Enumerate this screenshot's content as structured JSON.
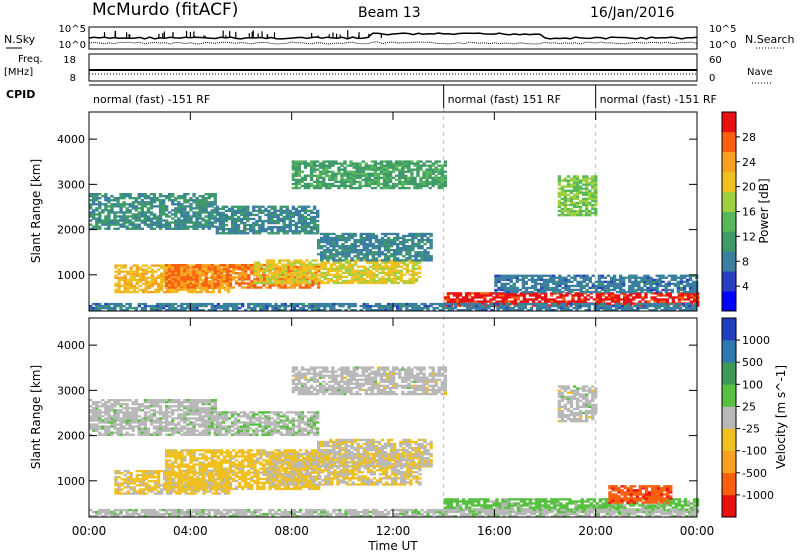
{
  "header": {
    "station": "McMurdo (fitACF)",
    "beam": "Beam 13",
    "date": "16/Jan/2016"
  },
  "control_panels": {
    "nsky_label": "N.Sky",
    "nsearch_label": "N.Search",
    "freq_label_line1": "Freq.",
    "freq_label_line2": "[MHz]",
    "nave_label": "Nave",
    "cpid_label": "CPID",
    "noise_ticks_left": [
      "10^5",
      "10^0"
    ],
    "noise_ticks_right": [
      "10^5",
      "10^0"
    ],
    "freq_ticks": [
      "18",
      "8"
    ],
    "nave_ticks": [
      "60",
      "0"
    ],
    "cpid_segments": [
      {
        "label": "normal (fast) -151 RF",
        "start_hr": 0,
        "end_hr": 14
      },
      {
        "label": "normal (fast) 151 RF",
        "start_hr": 14,
        "end_hr": 20
      },
      {
        "label": "normal (fast) -151 RF",
        "start_hr": 20,
        "end_hr": 24
      }
    ]
  },
  "x_axis": {
    "label": "Time UT",
    "ticks": [
      "00:00",
      "04:00",
      "08:00",
      "12:00",
      "16:00",
      "20:00",
      "00:00"
    ]
  },
  "chart_data": [
    {
      "type": "heatmap",
      "panel": "power",
      "ylabel": "Slant Range [km]",
      "yticks": [
        1000,
        2000,
        3000,
        4000
      ],
      "ylim": [
        200,
        4600
      ],
      "xlim_hr": [
        0,
        24
      ],
      "colorbar_label": "Power [dB]",
      "colorbar_ticks": [
        "28",
        "24",
        "20",
        "16",
        "12",
        "8",
        "4"
      ],
      "colorbar_range": [
        0,
        32
      ],
      "colors": [
        "#0000ff",
        "#2a3fbf",
        "#3a7fa0",
        "#3f9a6a",
        "#57b85a",
        "#9fd040",
        "#f0c020",
        "#f8a020",
        "#f86010",
        "#e81010"
      ],
      "echo_regions": [
        {
          "t0": 0.0,
          "t1": 5.0,
          "r0": 2000,
          "r1": 2800,
          "v": 10
        },
        {
          "t0": 1.0,
          "t1": 5.5,
          "r0": 600,
          "r1": 1200,
          "v": 22
        },
        {
          "t0": 3.0,
          "t1": 9.0,
          "r0": 700,
          "r1": 1200,
          "v": 26
        },
        {
          "t0": 6.5,
          "t1": 13.0,
          "r0": 800,
          "r1": 1300,
          "v": 20
        },
        {
          "t0": 9.0,
          "t1": 13.5,
          "r0": 1300,
          "r1": 1900,
          "v": 9
        },
        {
          "t0": 8.0,
          "t1": 14.0,
          "r0": 2900,
          "r1": 3500,
          "v": 12
        },
        {
          "t0": 5.0,
          "t1": 9.0,
          "r0": 1900,
          "r1": 2500,
          "v": 9
        },
        {
          "t0": 14.0,
          "t1": 24.0,
          "r0": 300,
          "r1": 600,
          "v": 30
        },
        {
          "t0": 16.0,
          "t1": 24.0,
          "r0": 600,
          "r1": 1000,
          "v": 8
        },
        {
          "t0": 18.5,
          "t1": 20.0,
          "r0": 2300,
          "r1": 3200,
          "v": 16
        },
        {
          "t0": 0.0,
          "t1": 24.0,
          "r0": 200,
          "r1": 350,
          "v": 8
        }
      ]
    },
    {
      "type": "heatmap",
      "panel": "velocity",
      "ylabel": "Slant Range [km]",
      "yticks": [
        1000,
        2000,
        3000,
        4000
      ],
      "ylim": [
        200,
        4600
      ],
      "xlim_hr": [
        0,
        24
      ],
      "colorbar_label": "Velocity [m s^-1]",
      "colorbar_ticks": [
        "1000",
        "500",
        "100",
        "25",
        "-25",
        "-100",
        "-500",
        "-1000"
      ],
      "colorbar_range": [
        -1000,
        1000
      ],
      "colors": [
        "#e81010",
        "#f86010",
        "#f8a020",
        "#f0c020",
        "#b8b8b8",
        "#57c040",
        "#3f9a5a",
        "#2e7ab0",
        "#2040c0"
      ],
      "echo_regions": [
        {
          "t0": 0.0,
          "t1": 5.0,
          "r0": 2000,
          "r1": 2800,
          "v": 20
        },
        {
          "t0": 1.0,
          "t1": 5.5,
          "r0": 700,
          "r1": 1200,
          "v": -150
        },
        {
          "t0": 3.0,
          "t1": 9.0,
          "r0": 800,
          "r1": 1700,
          "v": -200
        },
        {
          "t0": 7.0,
          "t1": 13.0,
          "r0": 900,
          "r1": 1600,
          "v": -120
        },
        {
          "t0": 9.0,
          "t1": 13.5,
          "r0": 1300,
          "r1": 1900,
          "v": -90
        },
        {
          "t0": 8.0,
          "t1": 14.0,
          "r0": 2900,
          "r1": 3500,
          "v": 0
        },
        {
          "t0": 5.0,
          "t1": 9.0,
          "r0": 2000,
          "r1": 2500,
          "v": 60
        },
        {
          "t0": 14.0,
          "t1": 24.0,
          "r0": 300,
          "r1": 600,
          "v": 200
        },
        {
          "t0": 20.5,
          "t1": 23.0,
          "r0": 500,
          "r1": 900,
          "v": -700
        },
        {
          "t0": 18.5,
          "t1": 20.0,
          "r0": 2300,
          "r1": 3100,
          "v": 0
        },
        {
          "t0": 0.0,
          "t1": 24.0,
          "r0": 200,
          "r1": 350,
          "v": 30
        }
      ]
    }
  ]
}
